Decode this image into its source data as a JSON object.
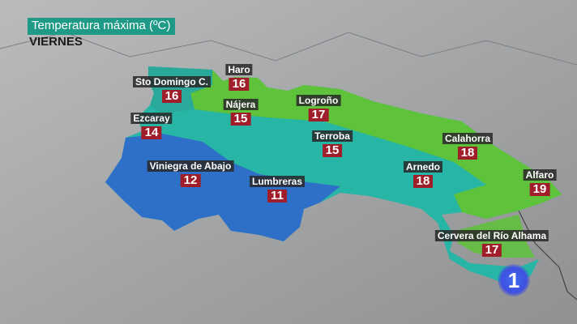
{
  "header": {
    "title": "Temperatura máxima (ºC)",
    "day": "VIERNES"
  },
  "colors": {
    "title_bg": "#1f9a86",
    "temp_bg": "#a01e2a",
    "zone_cold": "#2e6fc7",
    "zone_mid": "#27b5a5",
    "zone_warm": "#5ec23a"
  },
  "cities": [
    {
      "name": "Haro",
      "temp": "16"
    },
    {
      "name": "Sto Domingo C.",
      "temp": "16"
    },
    {
      "name": "Logroño",
      "temp": "17"
    },
    {
      "name": "Nájera",
      "temp": "15"
    },
    {
      "name": "Ezcaray",
      "temp": "14"
    },
    {
      "name": "Terroba",
      "temp": "15"
    },
    {
      "name": "Calahorra",
      "temp": "18"
    },
    {
      "name": "Viniegra de Abajo",
      "temp": "12"
    },
    {
      "name": "Arnedo",
      "temp": "18"
    },
    {
      "name": "Lumbreras",
      "temp": "11"
    },
    {
      "name": "Alfaro",
      "temp": "19"
    },
    {
      "name": "Cervera del Río Alhama",
      "temp": "17"
    }
  ],
  "logo": {
    "text": "1"
  }
}
